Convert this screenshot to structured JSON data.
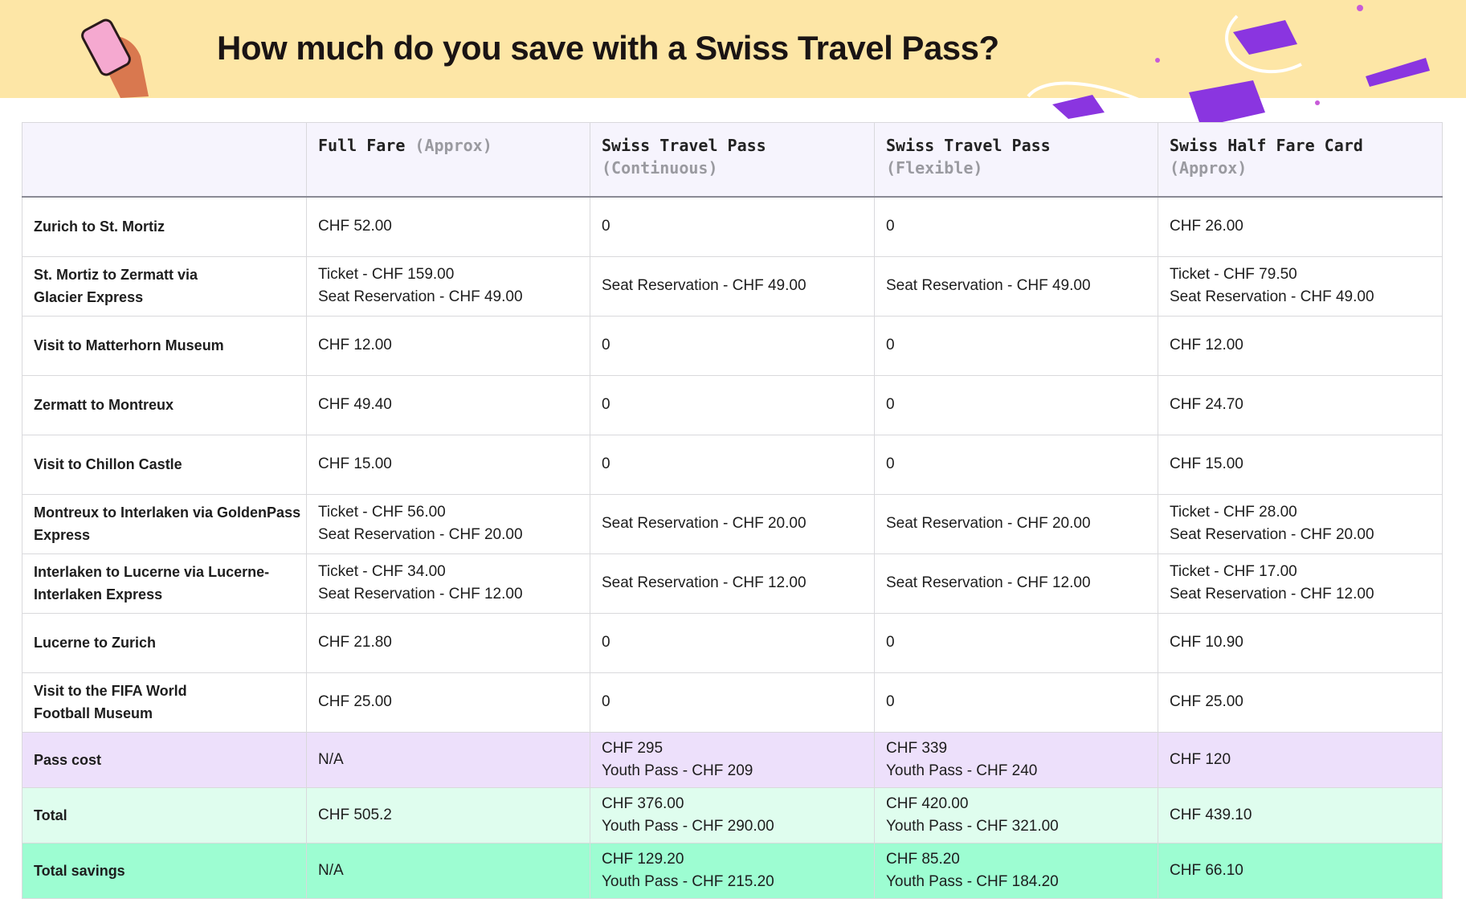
{
  "header": {
    "title": "How much do you save with a Swiss Travel Pass?"
  },
  "table": {
    "columns": [
      {
        "name": "Full Fare",
        "note": "(Approx)"
      },
      {
        "name": "Swiss Travel Pass",
        "note": "(Continuous)"
      },
      {
        "name": "Swiss Travel Pass",
        "note": "(Flexible)"
      },
      {
        "name": "Swiss Half Fare Card",
        "note": "(Approx)"
      }
    ],
    "rows": [
      {
        "label": [
          "Zurich to St. Mortiz"
        ],
        "cells": [
          [
            "CHF 52.00"
          ],
          [
            "0"
          ],
          [
            "0"
          ],
          [
            "CHF 26.00"
          ]
        ]
      },
      {
        "label": [
          "St. Mortiz to Zermatt via",
          "Glacier Express"
        ],
        "cells": [
          [
            "Ticket - CHF 159.00",
            "Seat Reservation - CHF 49.00"
          ],
          [
            "Seat Reservation - CHF 49.00"
          ],
          [
            "Seat Reservation - CHF 49.00"
          ],
          [
            "Ticket - CHF 79.50",
            "Seat Reservation - CHF 49.00"
          ]
        ]
      },
      {
        "label": [
          "Visit to Matterhorn Museum"
        ],
        "cells": [
          [
            "CHF 12.00"
          ],
          [
            "0"
          ],
          [
            "0"
          ],
          [
            "CHF 12.00"
          ]
        ]
      },
      {
        "label": [
          "Zermatt to Montreux"
        ],
        "cells": [
          [
            "CHF 49.40"
          ],
          [
            "0"
          ],
          [
            "0"
          ],
          [
            "CHF 24.70"
          ]
        ]
      },
      {
        "label": [
          "Visit to Chillon Castle"
        ],
        "cells": [
          [
            "CHF 15.00"
          ],
          [
            "0"
          ],
          [
            "0"
          ],
          [
            "CHF 15.00"
          ]
        ]
      },
      {
        "label": [
          "Montreux to Interlaken via GoldenPass",
          "Express"
        ],
        "cells": [
          [
            "Ticket - CHF 56.00",
            "Seat Reservation - CHF 20.00"
          ],
          [
            "Seat Reservation - CHF 20.00"
          ],
          [
            "Seat Reservation - CHF 20.00"
          ],
          [
            "Ticket - CHF 28.00",
            "Seat Reservation - CHF 20.00"
          ]
        ]
      },
      {
        "label": [
          "Interlaken to Lucerne via Lucerne-",
          "Interlaken Express"
        ],
        "cells": [
          [
            "Ticket - CHF 34.00",
            "Seat Reservation - CHF 12.00"
          ],
          [
            "Seat Reservation - CHF 12.00"
          ],
          [
            "Seat Reservation - CHF 12.00"
          ],
          [
            "Ticket - CHF 17.00",
            "Seat Reservation - CHF 12.00"
          ]
        ]
      },
      {
        "label": [
          "Lucerne to Zurich"
        ],
        "cells": [
          [
            "CHF 21.80"
          ],
          [
            "0"
          ],
          [
            "0"
          ],
          [
            "CHF 10.90"
          ]
        ]
      },
      {
        "label": [
          "Visit to the FIFA World",
          "Football Museum"
        ],
        "cells": [
          [
            "CHF 25.00"
          ],
          [
            "0"
          ],
          [
            "0"
          ],
          [
            "CHF 25.00"
          ]
        ]
      },
      {
        "label": [
          "Pass cost"
        ],
        "cells": [
          [
            "N/A"
          ],
          [
            "CHF 295",
            "Youth Pass - CHF 209"
          ],
          [
            "CHF 339",
            "Youth Pass - CHF 240"
          ],
          [
            "CHF 120"
          ]
        ]
      },
      {
        "label": [
          "Total"
        ],
        "cells": [
          [
            "CHF 505.2"
          ],
          [
            "CHF 376.00",
            "Youth Pass - CHF 290.00"
          ],
          [
            "CHF 420.00",
            "Youth Pass - CHF 321.00"
          ],
          [
            "CHF 439.10"
          ]
        ]
      },
      {
        "label": [
          "Total savings"
        ],
        "cells": [
          [
            "N/A"
          ],
          [
            "CHF 129.20",
            "Youth Pass - CHF 215.20"
          ],
          [
            "CHF 85.20",
            "Youth Pass - CHF 184.20"
          ],
          [
            "CHF 66.10"
          ]
        ]
      }
    ]
  }
}
